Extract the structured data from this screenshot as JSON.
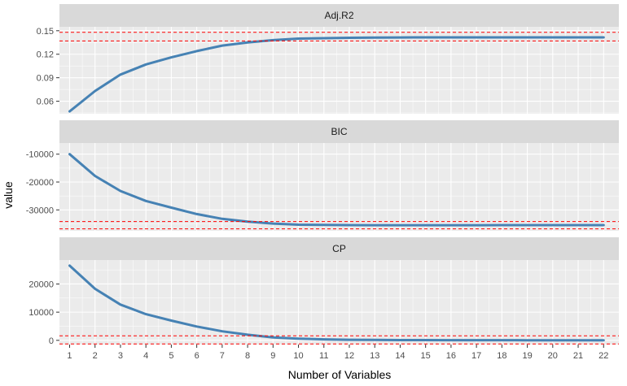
{
  "chart_data": {
    "type": "line",
    "xlabel": "Number of Variables",
    "ylabel": "value",
    "x": [
      1,
      2,
      3,
      4,
      5,
      6,
      7,
      8,
      9,
      10,
      11,
      12,
      13,
      14,
      15,
      16,
      17,
      18,
      19,
      20,
      21,
      22
    ],
    "x_range": [
      0.6,
      22.6
    ],
    "grid": true,
    "line_color": "#4682B4",
    "reference_line_color": "#FF0000",
    "panel_background": "#EBEBEB",
    "strip_background": "#D9D9D9",
    "facets": [
      {
        "name": "Adj.R2",
        "values": [
          0.047,
          0.073,
          0.094,
          0.107,
          0.116,
          0.124,
          0.131,
          0.135,
          0.138,
          0.14,
          0.1405,
          0.141,
          0.1412,
          0.1414,
          0.1415,
          0.1415,
          0.1415,
          0.1415,
          0.1415,
          0.1415,
          0.1415,
          0.1415
        ],
        "ylim": [
          0.044,
          0.155
        ],
        "yticks": [
          0.06,
          0.09,
          0.12,
          0.15
        ],
        "ytick_labels": [
          "0.06",
          "0.09",
          "0.12",
          "0.15"
        ],
        "reference_lines": [
          0.148,
          0.137
        ]
      },
      {
        "name": "BIC",
        "values": [
          -10000,
          -17800,
          -23200,
          -26800,
          -29200,
          -31500,
          -33200,
          -34200,
          -34900,
          -35300,
          -35400,
          -35450,
          -35500,
          -35500,
          -35500,
          -35500,
          -35500,
          -35450,
          -35450,
          -35450,
          -35450,
          -35450
        ],
        "ylim": [
          -37500,
          -6000
        ],
        "yticks": [
          -30000,
          -20000,
          -10000
        ],
        "ytick_labels": [
          "-30000",
          "-20000",
          "-10000"
        ],
        "reference_lines": [
          -34200,
          -36800
        ]
      },
      {
        "name": "CP",
        "values": [
          26500,
          18300,
          12700,
          9300,
          7000,
          4900,
          3200,
          2000,
          1000,
          600,
          350,
          200,
          150,
          100,
          80,
          60,
          50,
          45,
          40,
          40,
          40,
          40
        ],
        "ylim": [
          -1500,
          28500
        ],
        "yticks": [
          0,
          10000,
          20000
        ],
        "ytick_labels": [
          "0",
          "10000",
          "20000"
        ],
        "reference_lines": [
          1600,
          -1300
        ]
      }
    ]
  }
}
